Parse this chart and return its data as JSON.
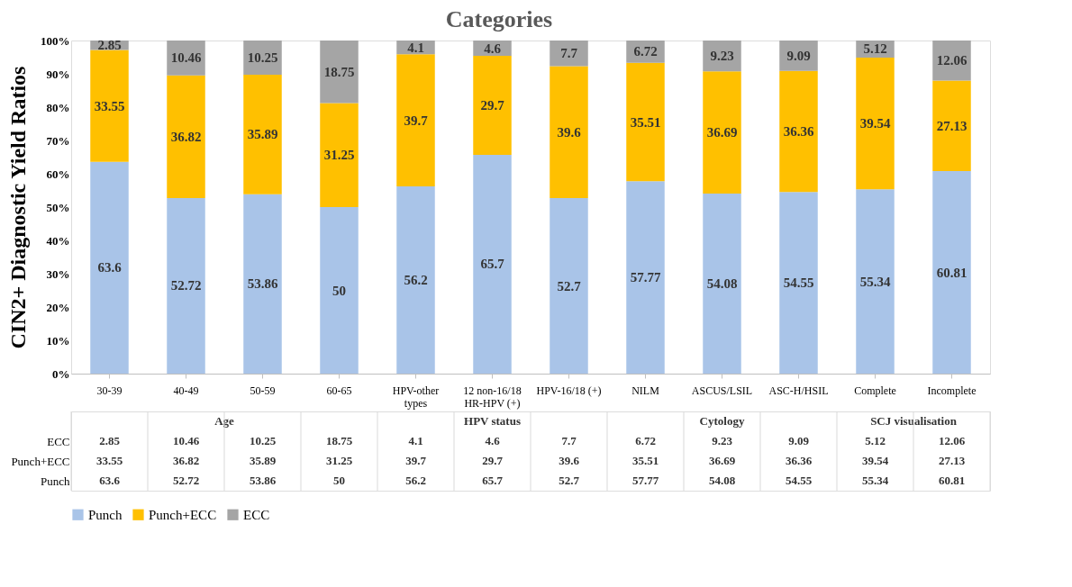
{
  "chart_data": {
    "type": "bar",
    "title": "Categories",
    "ylabel": "CIN2+ Diagnostic Yield Ratios",
    "categories": [
      "30-39",
      "40-49",
      "50-59",
      "60-65",
      "HPV-other types",
      "12 non-16/18 HR-HPV (+)",
      "HPV-16/18 (+)",
      "NILM",
      "ASCUS/LSIL",
      "ASC-H/HSIL",
      "Complete",
      "Incomplete"
    ],
    "series": [
      {
        "name": "Punch",
        "color": "#a9c4e8",
        "values": [
          63.6,
          52.72,
          53.86,
          50,
          56.2,
          65.7,
          52.7,
          57.77,
          54.08,
          54.55,
          55.34,
          60.81
        ],
        "value_labels": [
          "63.6",
          "52.72",
          "53.86",
          "50",
          "56.2",
          "65.7",
          "52.7",
          "57.77",
          "54.08",
          "54.55",
          "55.34",
          "60.81"
        ]
      },
      {
        "name": "Punch+ECC",
        "color": "#ffc000",
        "values": [
          33.55,
          36.82,
          35.89,
          31.25,
          39.7,
          29.7,
          39.6,
          35.51,
          36.69,
          36.36,
          39.54,
          27.13
        ],
        "value_labels": [
          "33.55",
          "36.82",
          "35.89",
          "31.25",
          "39.7",
          "29.7",
          "39.6",
          "35.51",
          "36.69",
          "36.36",
          "39.54",
          "27.13"
        ]
      },
      {
        "name": "ECC",
        "color": "#a5a5a5",
        "values": [
          2.85,
          10.46,
          10.25,
          18.75,
          4.1,
          4.6,
          7.7,
          6.72,
          9.23,
          9.09,
          5.12,
          12.06
        ],
        "value_labels": [
          "2.85",
          "10.46",
          "10.25",
          "18.75",
          "4.1",
          "4.6",
          "7.7",
          "6.72",
          "9.23",
          "9.09",
          "5.12",
          "12.06"
        ]
      }
    ],
    "stacked": true,
    "data_labels": true,
    "grid": false,
    "legend": "bottom",
    "ylim": [
      0,
      100
    ],
    "yticks": [
      {
        "value": 0,
        "label": "0%"
      },
      {
        "value": 10,
        "label": "10%"
      },
      {
        "value": 20,
        "label": "20%"
      },
      {
        "value": 30,
        "label": "30%"
      },
      {
        "value": 40,
        "label": "40%"
      },
      {
        "value": 50,
        "label": "50%"
      },
      {
        "value": 60,
        "label": "60%"
      },
      {
        "value": 70,
        "label": "70%"
      },
      {
        "value": 80,
        "label": "80%"
      },
      {
        "value": 90,
        "label": "90%"
      },
      {
        "value": 100,
        "label": "100%"
      }
    ],
    "annotations": [
      "Age",
      "HPV status",
      "Cytology",
      "SCJ visualisation"
    ]
  }
}
